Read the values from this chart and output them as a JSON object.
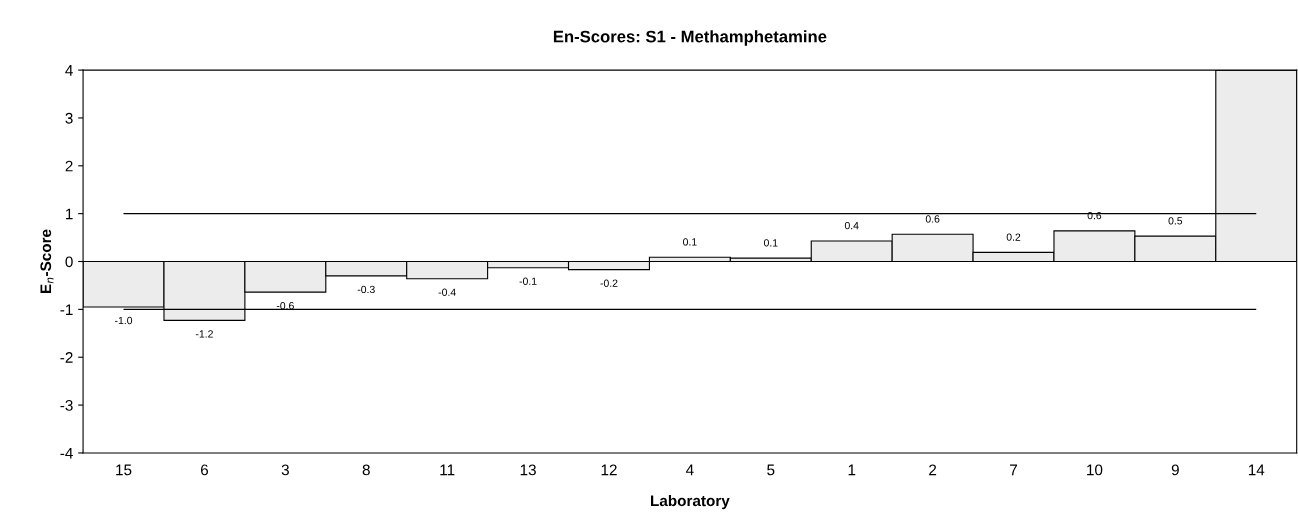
{
  "chart_data": {
    "type": "bar",
    "title": "En-Scores: S1 - Methamphetamine",
    "xlabel": "Laboratory",
    "ylabel": "E$_{n}$-Score",
    "categories": [
      "15",
      "6",
      "3",
      "8",
      "11",
      "13",
      "12",
      "4",
      "5",
      "1",
      "2",
      "7",
      "10",
      "9",
      "14"
    ],
    "values": [
      -0.95,
      -1.23,
      -0.64,
      -0.3,
      -0.36,
      -0.13,
      -0.17,
      0.09,
      0.07,
      0.43,
      0.57,
      0.19,
      0.64,
      0.53,
      4
    ],
    "value_labels": [
      "-1.0",
      "-1.2",
      "-0.6",
      "-0.3",
      "-0.4",
      "-0.1",
      "-0.2",
      "0.1",
      "0.1",
      "0.4",
      "0.6",
      "0.2",
      "0.6",
      "0.5",
      null
    ],
    "color": "#ececec",
    "ylim": [
      -4,
      4
    ],
    "yticks": [
      -4,
      -3,
      -2,
      -1,
      0,
      1,
      2,
      3,
      4
    ],
    "ref_lines": [
      {
        "axis": "y",
        "value": 1,
        "color": "#000000"
      },
      {
        "axis": "y",
        "value": -1,
        "color": "#000000"
      }
    ],
    "grid": false,
    "legend": false
  }
}
